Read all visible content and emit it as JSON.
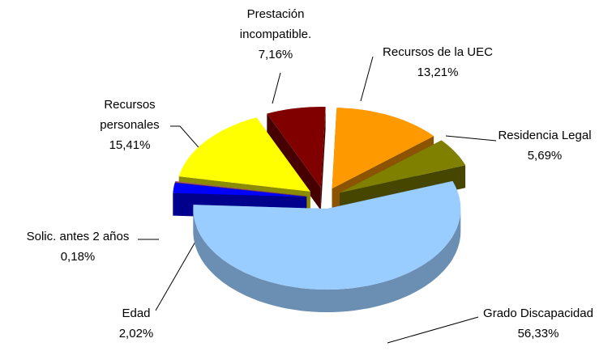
{
  "chart_data": {
    "type": "pie3d",
    "categories": [
      "Recursos de la UEC",
      "Residencia Legal",
      "Grado Discapacidad",
      "Edad",
      "Solic. antes 2 años",
      "Recursos personales",
      "Prestación incompatible."
    ],
    "values": [
      13.21,
      5.69,
      56.33,
      2.02,
      0.18,
      15.41,
      7.16
    ],
    "value_labels": [
      "13,21%",
      "5,69%",
      "56,33%",
      "2,02%",
      "0,18%",
      "15,41%",
      "7,16%"
    ],
    "colors": [
      "#ff9900",
      "#808000",
      "#99ccff",
      "#0000ff",
      "#b06080",
      "#ffff00",
      "#800000"
    ]
  }
}
